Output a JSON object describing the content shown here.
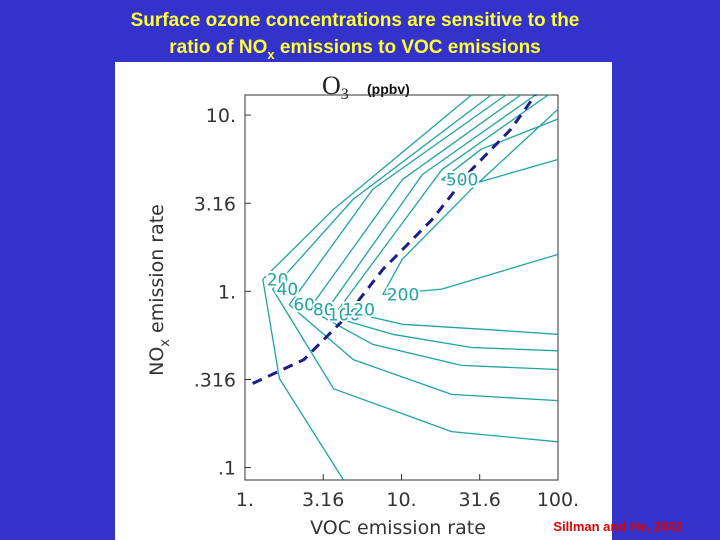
{
  "slide": {
    "title_line1": "Surface ozone concentrations are sensitive to the",
    "title_line2": [
      "ratio of NO",
      "x",
      " emissions to VOC emissions"
    ],
    "credit": "Sillman and He, 2002"
  },
  "chart_data": {
    "type": "contour",
    "title": [
      "O",
      "3"
    ],
    "units": "(ppbv)",
    "xlabel": "VOC emission rate",
    "ylabel": [
      "NO",
      "x",
      " emission rate"
    ],
    "xscale": "log",
    "yscale": "log",
    "xlim": [
      1,
      100
    ],
    "ylim": [
      0.085,
      13
    ],
    "xticks": [
      {
        "value": 1,
        "label": "1."
      },
      3.16,
      {
        "value": 10,
        "label": "10."
      },
      31.6,
      {
        "value": 100,
        "label": "100."
      }
    ],
    "yticks": [
      {
        "value": 0.1,
        "label": ".1"
      },
      {
        "value": 0.316,
        "label": ".316"
      },
      {
        "value": 1,
        "label": "1."
      },
      3.16,
      {
        "value": 10,
        "label": "10."
      }
    ],
    "contour_color": "#1fa3a3",
    "contours": [
      {
        "level": 20,
        "x": [
          28,
          3.68,
          1.3,
          1.66,
          4.26
        ],
        "y": [
          13,
          2.92,
          1.17,
          0.32,
          0.085
        ]
      },
      {
        "level": 40,
        "x": [
          37.4,
          4.92,
          1.5,
          3.68,
          20.9,
          100
        ],
        "y": [
          13,
          3.33,
          1.03,
          0.28,
          0.16,
          0.14
        ]
      },
      {
        "level": 60,
        "x": [
          46.4,
          6.57,
          1.92,
          4.92,
          20.9,
          100
        ],
        "y": [
          13,
          3.8,
          0.84,
          0.41,
          0.26,
          0.24
        ]
      },
      {
        "level": 80,
        "x": [
          57.7,
          10.1,
          2.56,
          6.57,
          24.2,
          100
        ],
        "y": [
          13,
          4.3,
          0.79,
          0.5,
          0.38,
          0.36
        ]
      },
      {
        "level": 100,
        "x": [
          71.7,
          13.6,
          3.19,
          8.78,
          28,
          100
        ],
        "y": [
          13,
          4.6,
          0.74,
          0.57,
          0.48,
          0.46
        ]
      },
      {
        "level": 120,
        "x": [
          86.5,
          18.1,
          3.96,
          10.1,
          32.3,
          100
        ],
        "y": [
          13,
          4.9,
          0.79,
          0.65,
          0.61,
          0.57
        ]
      },
      {
        "level": 200,
        "x": [
          100,
          28,
          10.1,
          7.6,
          18.1,
          100
        ],
        "y": [
          10.8,
          3.8,
          1.52,
          0.96,
          1.03,
          1.62
        ]
      },
      {
        "level": 500,
        "x": [
          100,
          32.3,
          18.1,
          28,
          100
        ],
        "y": [
          9.5,
          6.4,
          4.3,
          4.05,
          5.6
        ]
      }
    ],
    "ridge": {
      "color": "#1c1c8a",
      "x": [
        1.12,
        2.38,
        4.26,
        7.6,
        15.7,
        28,
        49.9,
        71.7
      ],
      "y": [
        0.3,
        0.41,
        0.69,
        1.33,
        2.56,
        4.9,
        8.3,
        13
      ]
    }
  }
}
